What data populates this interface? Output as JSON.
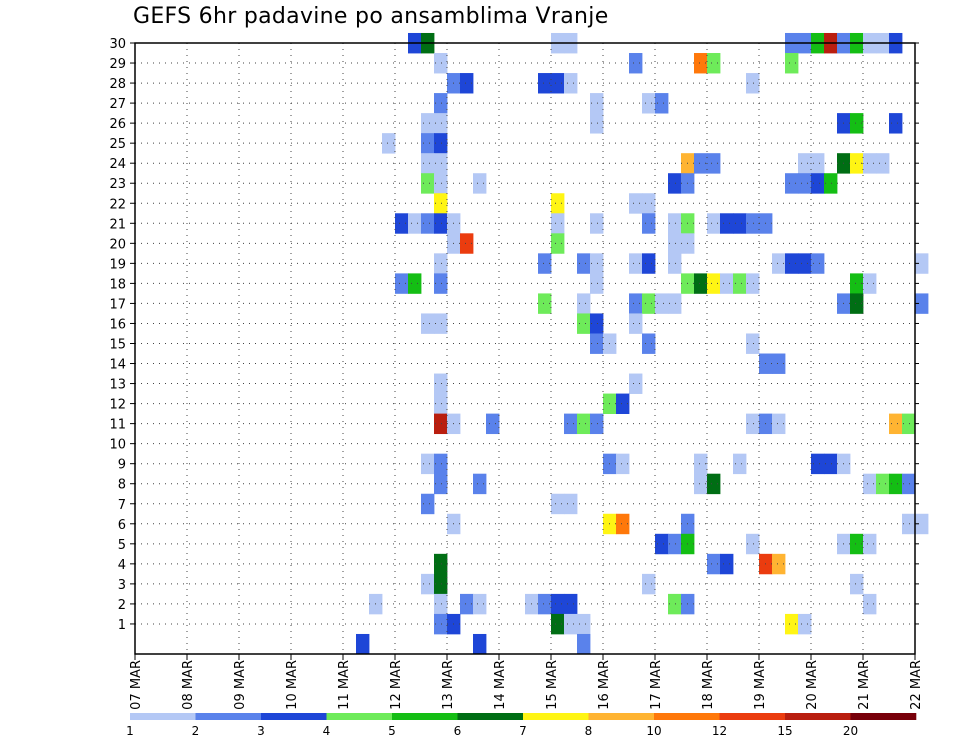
{
  "chart_data": {
    "type": "heatmap",
    "title": "GEFS 6hr padavine po ansamblima Vranje",
    "xlabel": "",
    "ylabel": "",
    "x_ticks": [
      "07 MAR",
      "08 MAR",
      "09 MAR",
      "10 MAR",
      "11 MAR",
      "12 MAR",
      "13 MAR",
      "14 MAR",
      "15 MAR",
      "16 MAR",
      "17 MAR",
      "18 MAR",
      "19 MAR",
      "20 MAR",
      "21 MAR",
      "22 MAR"
    ],
    "x_range": [
      "07 MAR",
      "22 MAR"
    ],
    "time_step_hours": 6,
    "y_ticks": [
      "1",
      "2",
      "3",
      "4",
      "5",
      "6",
      "7",
      "8",
      "9",
      "10",
      "11",
      "12",
      "13",
      "14",
      "15",
      "16",
      "17",
      "18",
      "19",
      "20",
      "21",
      "22",
      "23",
      "24",
      "25",
      "26",
      "27",
      "28",
      "29",
      "30"
    ],
    "y_range": [
      1,
      30
    ],
    "grid": "dotted",
    "legend_placement": "bottom",
    "colorbar": {
      "labels": [
        "1",
        "2",
        "3",
        "4",
        "5",
        "6",
        "7",
        "8",
        "10",
        "12",
        "15",
        "20"
      ],
      "colors": [
        "#b4c8f5",
        "#5a82eb",
        "#1e46d7",
        "#6eeb5a",
        "#14be14",
        "#006e14",
        "#fff514",
        "#ffb432",
        "#ff780a",
        "#eb3c0f",
        "#b91e0f",
        "#78000a"
      ]
    },
    "cells": [
      {
        "t": "12 MAR 06",
        "m": 30,
        "c": 3
      },
      {
        "t": "12 MAR 12",
        "m": 30,
        "c": 6
      },
      {
        "t": "15 MAR 00",
        "m": 30,
        "c": 1
      },
      {
        "t": "15 MAR 06",
        "m": 30,
        "c": 1
      },
      {
        "t": "19 MAR 12",
        "m": 30,
        "c": 2
      },
      {
        "t": "19 MAR 18",
        "m": 30,
        "c": 2
      },
      {
        "t": "20 MAR 00",
        "m": 30,
        "c": 5
      },
      {
        "t": "20 MAR 06",
        "m": 30,
        "c": 11
      },
      {
        "t": "20 MAR 12",
        "m": 30,
        "c": 2
      },
      {
        "t": "20 MAR 18",
        "m": 30,
        "c": 5
      },
      {
        "t": "21 MAR 00",
        "m": 30,
        "c": 1
      },
      {
        "t": "21 MAR 06",
        "m": 30,
        "c": 1
      },
      {
        "t": "21 MAR 12",
        "m": 30,
        "c": 3
      },
      {
        "t": "12 MAR 18",
        "m": 29,
        "c": 1
      },
      {
        "t": "16 MAR 12",
        "m": 29,
        "c": 2
      },
      {
        "t": "17 MAR 18",
        "m": 29,
        "c": 9
      },
      {
        "t": "18 MAR 00",
        "m": 29,
        "c": 4
      },
      {
        "t": "19 MAR 12",
        "m": 29,
        "c": 4
      },
      {
        "t": "13 MAR 00",
        "m": 28,
        "c": 2
      },
      {
        "t": "13 MAR 06",
        "m": 28,
        "c": 3
      },
      {
        "t": "14 MAR 18",
        "m": 28,
        "c": 3
      },
      {
        "t": "15 MAR 00",
        "m": 28,
        "c": 3
      },
      {
        "t": "15 MAR 06",
        "m": 28,
        "c": 1
      },
      {
        "t": "18 MAR 18",
        "m": 28,
        "c": 1
      },
      {
        "t": "12 MAR 18",
        "m": 27,
        "c": 2
      },
      {
        "t": "15 MAR 18",
        "m": 27,
        "c": 1
      },
      {
        "t": "16 MAR 18",
        "m": 27,
        "c": 1
      },
      {
        "t": "17 MAR 00",
        "m": 27,
        "c": 2
      },
      {
        "t": "12 MAR 12",
        "m": 26,
        "c": 1
      },
      {
        "t": "12 MAR 18",
        "m": 26,
        "c": 1
      },
      {
        "t": "15 MAR 18",
        "m": 26,
        "c": 1
      },
      {
        "t": "20 MAR 12",
        "m": 26,
        "c": 3
      },
      {
        "t": "20 MAR 18",
        "m": 26,
        "c": 5
      },
      {
        "t": "21 MAR 12",
        "m": 26,
        "c": 3
      },
      {
        "t": "11 MAR 18",
        "m": 25,
        "c": 1
      },
      {
        "t": "12 MAR 12",
        "m": 25,
        "c": 2
      },
      {
        "t": "12 MAR 18",
        "m": 25,
        "c": 3
      },
      {
        "t": "12 MAR 12",
        "m": 24,
        "c": 1
      },
      {
        "t": "12 MAR 18",
        "m": 24,
        "c": 1
      },
      {
        "t": "17 MAR 12",
        "m": 24,
        "c": 8
      },
      {
        "t": "17 MAR 18",
        "m": 24,
        "c": 2
      },
      {
        "t": "18 MAR 00",
        "m": 24,
        "c": 2
      },
      {
        "t": "19 MAR 18",
        "m": 24,
        "c": 1
      },
      {
        "t": "20 MAR 00",
        "m": 24,
        "c": 1
      },
      {
        "t": "20 MAR 12",
        "m": 24,
        "c": 6
      },
      {
        "t": "20 MAR 18",
        "m": 24,
        "c": 7
      },
      {
        "t": "21 MAR 00",
        "m": 24,
        "c": 1
      },
      {
        "t": "21 MAR 06",
        "m": 24,
        "c": 1
      },
      {
        "t": "12 MAR 12",
        "m": 23,
        "c": 4
      },
      {
        "t": "12 MAR 18",
        "m": 23,
        "c": 1
      },
      {
        "t": "13 MAR 12",
        "m": 23,
        "c": 1
      },
      {
        "t": "17 MAR 06",
        "m": 23,
        "c": 3
      },
      {
        "t": "17 MAR 12",
        "m": 23,
        "c": 2
      },
      {
        "t": "19 MAR 12",
        "m": 23,
        "c": 2
      },
      {
        "t": "19 MAR 18",
        "m": 23,
        "c": 2
      },
      {
        "t": "20 MAR 00",
        "m": 23,
        "c": 3
      },
      {
        "t": "20 MAR 06",
        "m": 23,
        "c": 5
      },
      {
        "t": "12 MAR 18",
        "m": 22,
        "c": 7
      },
      {
        "t": "15 MAR 00",
        "m": 22,
        "c": 7
      },
      {
        "t": "16 MAR 12",
        "m": 22,
        "c": 1
      },
      {
        "t": "16 MAR 18",
        "m": 22,
        "c": 1
      },
      {
        "t": "12 MAR 00",
        "m": 21,
        "c": 3
      },
      {
        "t": "12 MAR 06",
        "m": 21,
        "c": 1
      },
      {
        "t": "12 MAR 12",
        "m": 21,
        "c": 2
      },
      {
        "t": "12 MAR 18",
        "m": 21,
        "c": 3
      },
      {
        "t": "13 MAR 00",
        "m": 21,
        "c": 1
      },
      {
        "t": "15 MAR 00",
        "m": 21,
        "c": 1
      },
      {
        "t": "15 MAR 18",
        "m": 21,
        "c": 1
      },
      {
        "t": "16 MAR 18",
        "m": 21,
        "c": 2
      },
      {
        "t": "17 MAR 06",
        "m": 21,
        "c": 1
      },
      {
        "t": "17 MAR 12",
        "m": 21,
        "c": 4
      },
      {
        "t": "18 MAR 00",
        "m": 21,
        "c": 1
      },
      {
        "t": "18 MAR 06",
        "m": 21,
        "c": 3
      },
      {
        "t": "18 MAR 12",
        "m": 21,
        "c": 3
      },
      {
        "t": "18 MAR 18",
        "m": 21,
        "c": 2
      },
      {
        "t": "19 MAR 00",
        "m": 21,
        "c": 2
      },
      {
        "t": "13 MAR 00",
        "m": 20,
        "c": 1
      },
      {
        "t": "13 MAR 06",
        "m": 20,
        "c": 10
      },
      {
        "t": "15 MAR 00",
        "m": 20,
        "c": 4
      },
      {
        "t": "17 MAR 06",
        "m": 20,
        "c": 1
      },
      {
        "t": "17 MAR 12",
        "m": 20,
        "c": 1
      },
      {
        "t": "12 MAR 18",
        "m": 19,
        "c": 1
      },
      {
        "t": "14 MAR 18",
        "m": 19,
        "c": 2
      },
      {
        "t": "15 MAR 12",
        "m": 19,
        "c": 2
      },
      {
        "t": "15 MAR 18",
        "m": 19,
        "c": 1
      },
      {
        "t": "16 MAR 12",
        "m": 19,
        "c": 1
      },
      {
        "t": "16 MAR 18",
        "m": 19,
        "c": 3
      },
      {
        "t": "17 MAR 06",
        "m": 19,
        "c": 1
      },
      {
        "t": "19 MAR 06",
        "m": 19,
        "c": 1
      },
      {
        "t": "19 MAR 12",
        "m": 19,
        "c": 3
      },
      {
        "t": "19 MAR 18",
        "m": 19,
        "c": 3
      },
      {
        "t": "20 MAR 00",
        "m": 19,
        "c": 2
      },
      {
        "t": "22 MAR 00",
        "m": 19,
        "c": 1
      },
      {
        "t": "12 MAR 00",
        "m": 18,
        "c": 2
      },
      {
        "t": "12 MAR 06",
        "m": 18,
        "c": 5
      },
      {
        "t": "12 MAR 18",
        "m": 18,
        "c": 2
      },
      {
        "t": "15 MAR 18",
        "m": 18,
        "c": 1
      },
      {
        "t": "17 MAR 12",
        "m": 18,
        "c": 4
      },
      {
        "t": "17 MAR 18",
        "m": 18,
        "c": 6
      },
      {
        "t": "18 MAR 00",
        "m": 18,
        "c": 7
      },
      {
        "t": "18 MAR 06",
        "m": 18,
        "c": 1
      },
      {
        "t": "18 MAR 12",
        "m": 18,
        "c": 4
      },
      {
        "t": "18 MAR 18",
        "m": 18,
        "c": 1
      },
      {
        "t": "20 MAR 18",
        "m": 18,
        "c": 5
      },
      {
        "t": "21 MAR 00",
        "m": 18,
        "c": 1
      },
      {
        "t": "14 MAR 18",
        "m": 17,
        "c": 4
      },
      {
        "t": "15 MAR 12",
        "m": 17,
        "c": 1
      },
      {
        "t": "16 MAR 12",
        "m": 17,
        "c": 2
      },
      {
        "t": "16 MAR 18",
        "m": 17,
        "c": 4
      },
      {
        "t": "17 MAR 00",
        "m": 17,
        "c": 1
      },
      {
        "t": "17 MAR 06",
        "m": 17,
        "c": 1
      },
      {
        "t": "20 MAR 12",
        "m": 17,
        "c": 2
      },
      {
        "t": "20 MAR 18",
        "m": 17,
        "c": 6
      },
      {
        "t": "22 MAR 00",
        "m": 17,
        "c": 2
      },
      {
        "t": "12 MAR 12",
        "m": 16,
        "c": 1
      },
      {
        "t": "12 MAR 18",
        "m": 16,
        "c": 1
      },
      {
        "t": "15 MAR 12",
        "m": 16,
        "c": 4
      },
      {
        "t": "15 MAR 18",
        "m": 16,
        "c": 3
      },
      {
        "t": "16 MAR 12",
        "m": 16,
        "c": 1
      },
      {
        "t": "15 MAR 18",
        "m": 15,
        "c": 2
      },
      {
        "t": "16 MAR 00",
        "m": 15,
        "c": 1
      },
      {
        "t": "16 MAR 18",
        "m": 15,
        "c": 2
      },
      {
        "t": "18 MAR 18",
        "m": 15,
        "c": 1
      },
      {
        "t": "19 MAR 00",
        "m": 14,
        "c": 2
      },
      {
        "t": "19 MAR 06",
        "m": 14,
        "c": 2
      },
      {
        "t": "12 MAR 18",
        "m": 13,
        "c": 1
      },
      {
        "t": "16 MAR 12",
        "m": 13,
        "c": 1
      },
      {
        "t": "12 MAR 18",
        "m": 12,
        "c": 1
      },
      {
        "t": "16 MAR 00",
        "m": 12,
        "c": 4
      },
      {
        "t": "16 MAR 06",
        "m": 12,
        "c": 3
      },
      {
        "t": "12 MAR 18",
        "m": 11,
        "c": 11
      },
      {
        "t": "13 MAR 00",
        "m": 11,
        "c": 1
      },
      {
        "t": "13 MAR 18",
        "m": 11,
        "c": 2
      },
      {
        "t": "15 MAR 06",
        "m": 11,
        "c": 2
      },
      {
        "t": "15 MAR 12",
        "m": 11,
        "c": 4
      },
      {
        "t": "15 MAR 18",
        "m": 11,
        "c": 2
      },
      {
        "t": "18 MAR 18",
        "m": 11,
        "c": 1
      },
      {
        "t": "19 MAR 00",
        "m": 11,
        "c": 2
      },
      {
        "t": "19 MAR 06",
        "m": 11,
        "c": 1
      },
      {
        "t": "21 MAR 12",
        "m": 11,
        "c": 8
      },
      {
        "t": "21 MAR 18",
        "m": 11,
        "c": 4
      },
      {
        "t": "12 MAR 12",
        "m": 9,
        "c": 1
      },
      {
        "t": "12 MAR 18",
        "m": 9,
        "c": 2
      },
      {
        "t": "16 MAR 00",
        "m": 9,
        "c": 2
      },
      {
        "t": "16 MAR 06",
        "m": 9,
        "c": 1
      },
      {
        "t": "17 MAR 18",
        "m": 9,
        "c": 1
      },
      {
        "t": "18 MAR 12",
        "m": 9,
        "c": 1
      },
      {
        "t": "20 MAR 00",
        "m": 9,
        "c": 3
      },
      {
        "t": "20 MAR 06",
        "m": 9,
        "c": 3
      },
      {
        "t": "20 MAR 12",
        "m": 9,
        "c": 1
      },
      {
        "t": "12 MAR 18",
        "m": 8,
        "c": 2
      },
      {
        "t": "13 MAR 12",
        "m": 8,
        "c": 2
      },
      {
        "t": "17 MAR 18",
        "m": 8,
        "c": 1
      },
      {
        "t": "18 MAR 00",
        "m": 8,
        "c": 6
      },
      {
        "t": "21 MAR 00",
        "m": 8,
        "c": 1
      },
      {
        "t": "21 MAR 06",
        "m": 8,
        "c": 4
      },
      {
        "t": "21 MAR 12",
        "m": 8,
        "c": 5
      },
      {
        "t": "21 MAR 18",
        "m": 8,
        "c": 2
      },
      {
        "t": "12 MAR 12",
        "m": 7,
        "c": 2
      },
      {
        "t": "15 MAR 00",
        "m": 7,
        "c": 1
      },
      {
        "t": "15 MAR 06",
        "m": 7,
        "c": 1
      },
      {
        "t": "13 MAR 00",
        "m": 6,
        "c": 1
      },
      {
        "t": "16 MAR 00",
        "m": 6,
        "c": 7
      },
      {
        "t": "16 MAR 06",
        "m": 6,
        "c": 9
      },
      {
        "t": "17 MAR 12",
        "m": 6,
        "c": 2
      },
      {
        "t": "21 MAR 18",
        "m": 6,
        "c": 1
      },
      {
        "t": "22 MAR 00",
        "m": 6,
        "c": 1
      },
      {
        "t": "17 MAR 00",
        "m": 5,
        "c": 3
      },
      {
        "t": "17 MAR 06",
        "m": 5,
        "c": 2
      },
      {
        "t": "17 MAR 12",
        "m": 5,
        "c": 5
      },
      {
        "t": "18 MAR 18",
        "m": 5,
        "c": 1
      },
      {
        "t": "20 MAR 12",
        "m": 5,
        "c": 1
      },
      {
        "t": "20 MAR 18",
        "m": 5,
        "c": 5
      },
      {
        "t": "21 MAR 00",
        "m": 5,
        "c": 1
      },
      {
        "t": "12 MAR 18",
        "m": 4,
        "c": 6
      },
      {
        "t": "18 MAR 00",
        "m": 4,
        "c": 2
      },
      {
        "t": "18 MAR 06",
        "m": 4,
        "c": 3
      },
      {
        "t": "19 MAR 00",
        "m": 4,
        "c": 10
      },
      {
        "t": "19 MAR 06",
        "m": 4,
        "c": 8
      },
      {
        "t": "12 MAR 12",
        "m": 3,
        "c": 1
      },
      {
        "t": "12 MAR 18",
        "m": 3,
        "c": 6
      },
      {
        "t": "16 MAR 18",
        "m": 3,
        "c": 1
      },
      {
        "t": "20 MAR 18",
        "m": 3,
        "c": 1
      },
      {
        "t": "11 MAR 12",
        "m": 2,
        "c": 1
      },
      {
        "t": "12 MAR 18",
        "m": 2,
        "c": 1
      },
      {
        "t": "13 MAR 06",
        "m": 2,
        "c": 2
      },
      {
        "t": "13 MAR 12",
        "m": 2,
        "c": 1
      },
      {
        "t": "14 MAR 12",
        "m": 2,
        "c": 1
      },
      {
        "t": "14 MAR 18",
        "m": 2,
        "c": 2
      },
      {
        "t": "15 MAR 00",
        "m": 2,
        "c": 3
      },
      {
        "t": "15 MAR 06",
        "m": 2,
        "c": 3
      },
      {
        "t": "17 MAR 06",
        "m": 2,
        "c": 4
      },
      {
        "t": "17 MAR 12",
        "m": 2,
        "c": 2
      },
      {
        "t": "21 MAR 00",
        "m": 2,
        "c": 1
      },
      {
        "t": "12 MAR 18",
        "m": 1,
        "c": 2
      },
      {
        "t": "13 MAR 00",
        "m": 1,
        "c": 3
      },
      {
        "t": "15 MAR 00",
        "m": 1,
        "c": 6
      },
      {
        "t": "15 MAR 06",
        "m": 1,
        "c": 1
      },
      {
        "t": "15 MAR 12",
        "m": 1,
        "c": 1
      },
      {
        "t": "19 MAR 12",
        "m": 1,
        "c": 7
      },
      {
        "t": "19 MAR 18",
        "m": 1,
        "c": 1
      },
      {
        "t": "11 MAR 06",
        "m": 0,
        "c": 3
      },
      {
        "t": "13 MAR 12",
        "m": 0,
        "c": 3
      },
      {
        "t": "15 MAR 12",
        "m": 0,
        "c": 2
      }
    ]
  }
}
